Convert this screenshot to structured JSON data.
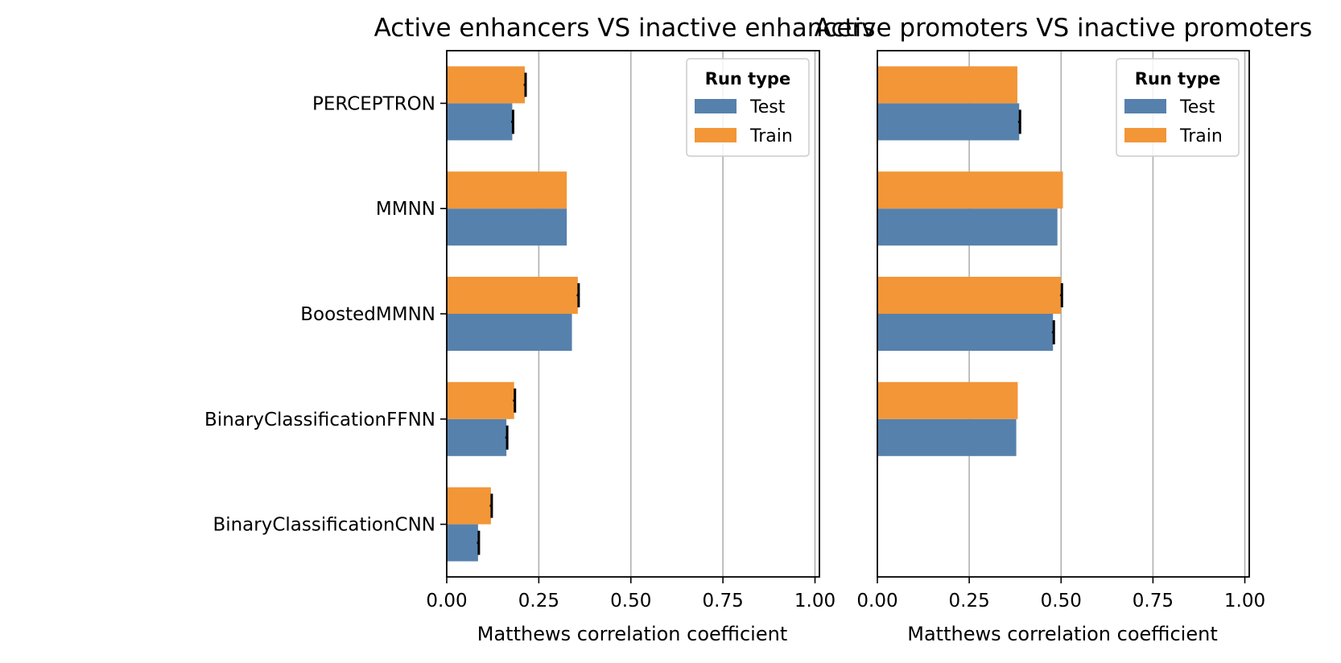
{
  "chart_data": [
    {
      "type": "bar",
      "orientation": "horizontal",
      "title": "Active enhancers VS inactive enhancers",
      "xlabel": "Matthews correlation coefficient",
      "ylabel": "",
      "xlim": [
        0,
        1.0
      ],
      "xticks": [
        "0.00",
        "0.25",
        "0.50",
        "0.75",
        "1.00"
      ],
      "grid": "x",
      "legend": {
        "title": "Run type",
        "placement": "top-right"
      },
      "categories": [
        "PERCEPTRON",
        "MMNN",
        "BoostedMMNN",
        "BinaryClassificationFFNN",
        "BinaryClassificationCNN"
      ],
      "series": [
        {
          "name": "Test",
          "color": "#5681ad",
          "values": [
            0.178,
            0.326,
            0.34,
            0.162,
            0.085
          ],
          "errors": [
            0.003,
            0,
            0,
            0.003,
            0.003
          ]
        },
        {
          "name": "Train",
          "color": "#f29637",
          "values": [
            0.212,
            0.326,
            0.356,
            0.183,
            0.12
          ],
          "errors": [
            0.003,
            0,
            0.003,
            0.003,
            0.003
          ]
        }
      ]
    },
    {
      "type": "bar",
      "orientation": "horizontal",
      "title": "Active promoters VS inactive promoters",
      "xlabel": "Matthews correlation coefficient",
      "ylabel": "",
      "xlim": [
        0,
        1.0
      ],
      "xticks": [
        "0.00",
        "0.25",
        "0.50",
        "0.75",
        "1.00"
      ],
      "grid": "x",
      "legend": {
        "title": "Run type",
        "placement": "top-right"
      },
      "categories": [
        "PERCEPTRON",
        "MMNN",
        "BoostedMMNN",
        "BinaryClassificationFFNN",
        "BinaryClassificationCNN"
      ],
      "series": [
        {
          "name": "Test",
          "color": "#5681ad",
          "values": [
            0.386,
            0.49,
            0.478,
            0.378,
            null
          ],
          "errors": [
            0.003,
            0,
            0.003,
            0,
            0
          ]
        },
        {
          "name": "Train",
          "color": "#f29637",
          "values": [
            0.381,
            0.505,
            0.5,
            0.382,
            null
          ],
          "errors": [
            0,
            0,
            0.003,
            0,
            0
          ]
        }
      ]
    }
  ]
}
